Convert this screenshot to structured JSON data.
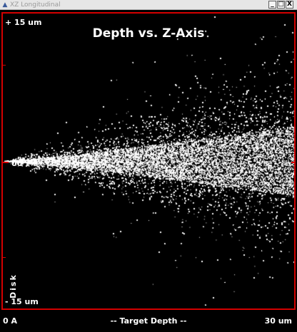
{
  "window": {
    "title": "XZ Longitudinal",
    "buttons": {
      "minimize": "_",
      "maximize": "□",
      "close": "X"
    }
  },
  "chart_data": {
    "type": "scatter",
    "title": "Depth vs. Z-Axis",
    "xlabel": "-- Target Depth --",
    "x_tick_labels": [
      "0 A",
      "30 um"
    ],
    "y_tick_labels": [
      "+ 15 um",
      "00",
      "- 15 um"
    ],
    "y_side_label": "Disk",
    "xlim": [
      0,
      30
    ],
    "ylim": [
      -15,
      15
    ],
    "units": {
      "x": "um",
      "y": "um"
    },
    "series": [
      {
        "color": "#ffffff",
        "points_description_visible": false,
        "spread_at_x": [
          {
            "x": 0,
            "y_min": 0,
            "y_max": 0
          },
          {
            "x": 7.5,
            "y_min": -1.5,
            "y_max": 1.5
          },
          {
            "x": 15,
            "y_min": -3.5,
            "y_max": 3.5
          },
          {
            "x": 22.5,
            "y_min": -5.5,
            "y_max": 6
          },
          {
            "x": 30,
            "y_min": -7.5,
            "y_max": 8
          }
        ]
      }
    ],
    "grid": false,
    "colors": {
      "background": "#000000",
      "points": "#ffffff",
      "border": "#d40000"
    }
  }
}
